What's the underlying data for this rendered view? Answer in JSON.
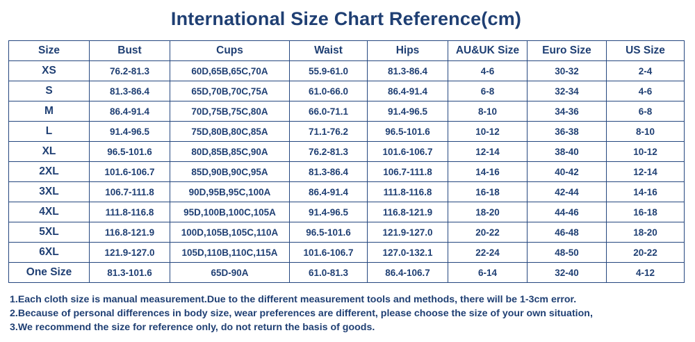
{
  "title": "International Size Chart Reference(cm)",
  "table": {
    "headers": [
      "Size",
      "Bust",
      "Cups",
      "Waist",
      "Hips",
      "AU&UK Size",
      "Euro Size",
      "US Size"
    ],
    "rows": [
      [
        "XS",
        "76.2-81.3",
        "60D,65B,65C,70A",
        "55.9-61.0",
        "81.3-86.4",
        "4-6",
        "30-32",
        "2-4"
      ],
      [
        "S",
        "81.3-86.4",
        "65D,70B,70C,75A",
        "61.0-66.0",
        "86.4-91.4",
        "6-8",
        "32-34",
        "4-6"
      ],
      [
        "M",
        "86.4-91.4",
        "70D,75B,75C,80A",
        "66.0-71.1",
        "91.4-96.5",
        "8-10",
        "34-36",
        "6-8"
      ],
      [
        "L",
        "91.4-96.5",
        "75D,80B,80C,85A",
        "71.1-76.2",
        "96.5-101.6",
        "10-12",
        "36-38",
        "8-10"
      ],
      [
        "XL",
        "96.5-101.6",
        "80D,85B,85C,90A",
        "76.2-81.3",
        "101.6-106.7",
        "12-14",
        "38-40",
        "10-12"
      ],
      [
        "2XL",
        "101.6-106.7",
        "85D,90B,90C,95A",
        "81.3-86.4",
        "106.7-111.8",
        "14-16",
        "40-42",
        "12-14"
      ],
      [
        "3XL",
        "106.7-111.8",
        "90D,95B,95C,100A",
        "86.4-91.4",
        "111.8-116.8",
        "16-18",
        "42-44",
        "14-16"
      ],
      [
        "4XL",
        "111.8-116.8",
        "95D,100B,100C,105A",
        "91.4-96.5",
        "116.8-121.9",
        "18-20",
        "44-46",
        "16-18"
      ],
      [
        "5XL",
        "116.8-121.9",
        "100D,105B,105C,110A",
        "96.5-101.6",
        "121.9-127.0",
        "20-22",
        "46-48",
        "18-20"
      ],
      [
        "6XL",
        "121.9-127.0",
        "105D,110B,110C,115A",
        "101.6-106.7",
        "127.0-132.1",
        "22-24",
        "48-50",
        "20-22"
      ],
      [
        "One Size",
        "81.3-101.6",
        "65D-90A",
        "61.0-81.3",
        "86.4-106.7",
        "6-14",
        "32-40",
        "4-12"
      ]
    ]
  },
  "notes": [
    "1.Each cloth size is manual measurement.Due to the different measurement tools and methods, there will be 1-3cm error.",
    "2.Because of personal differences in body size, wear preferences are different, please choose the size of your own situation,",
    "3.We recommend the size for reference only, do not return the basis of goods."
  ],
  "colors": {
    "text": "#1f3f73",
    "border": "#24467e",
    "background": "#ffffff"
  }
}
